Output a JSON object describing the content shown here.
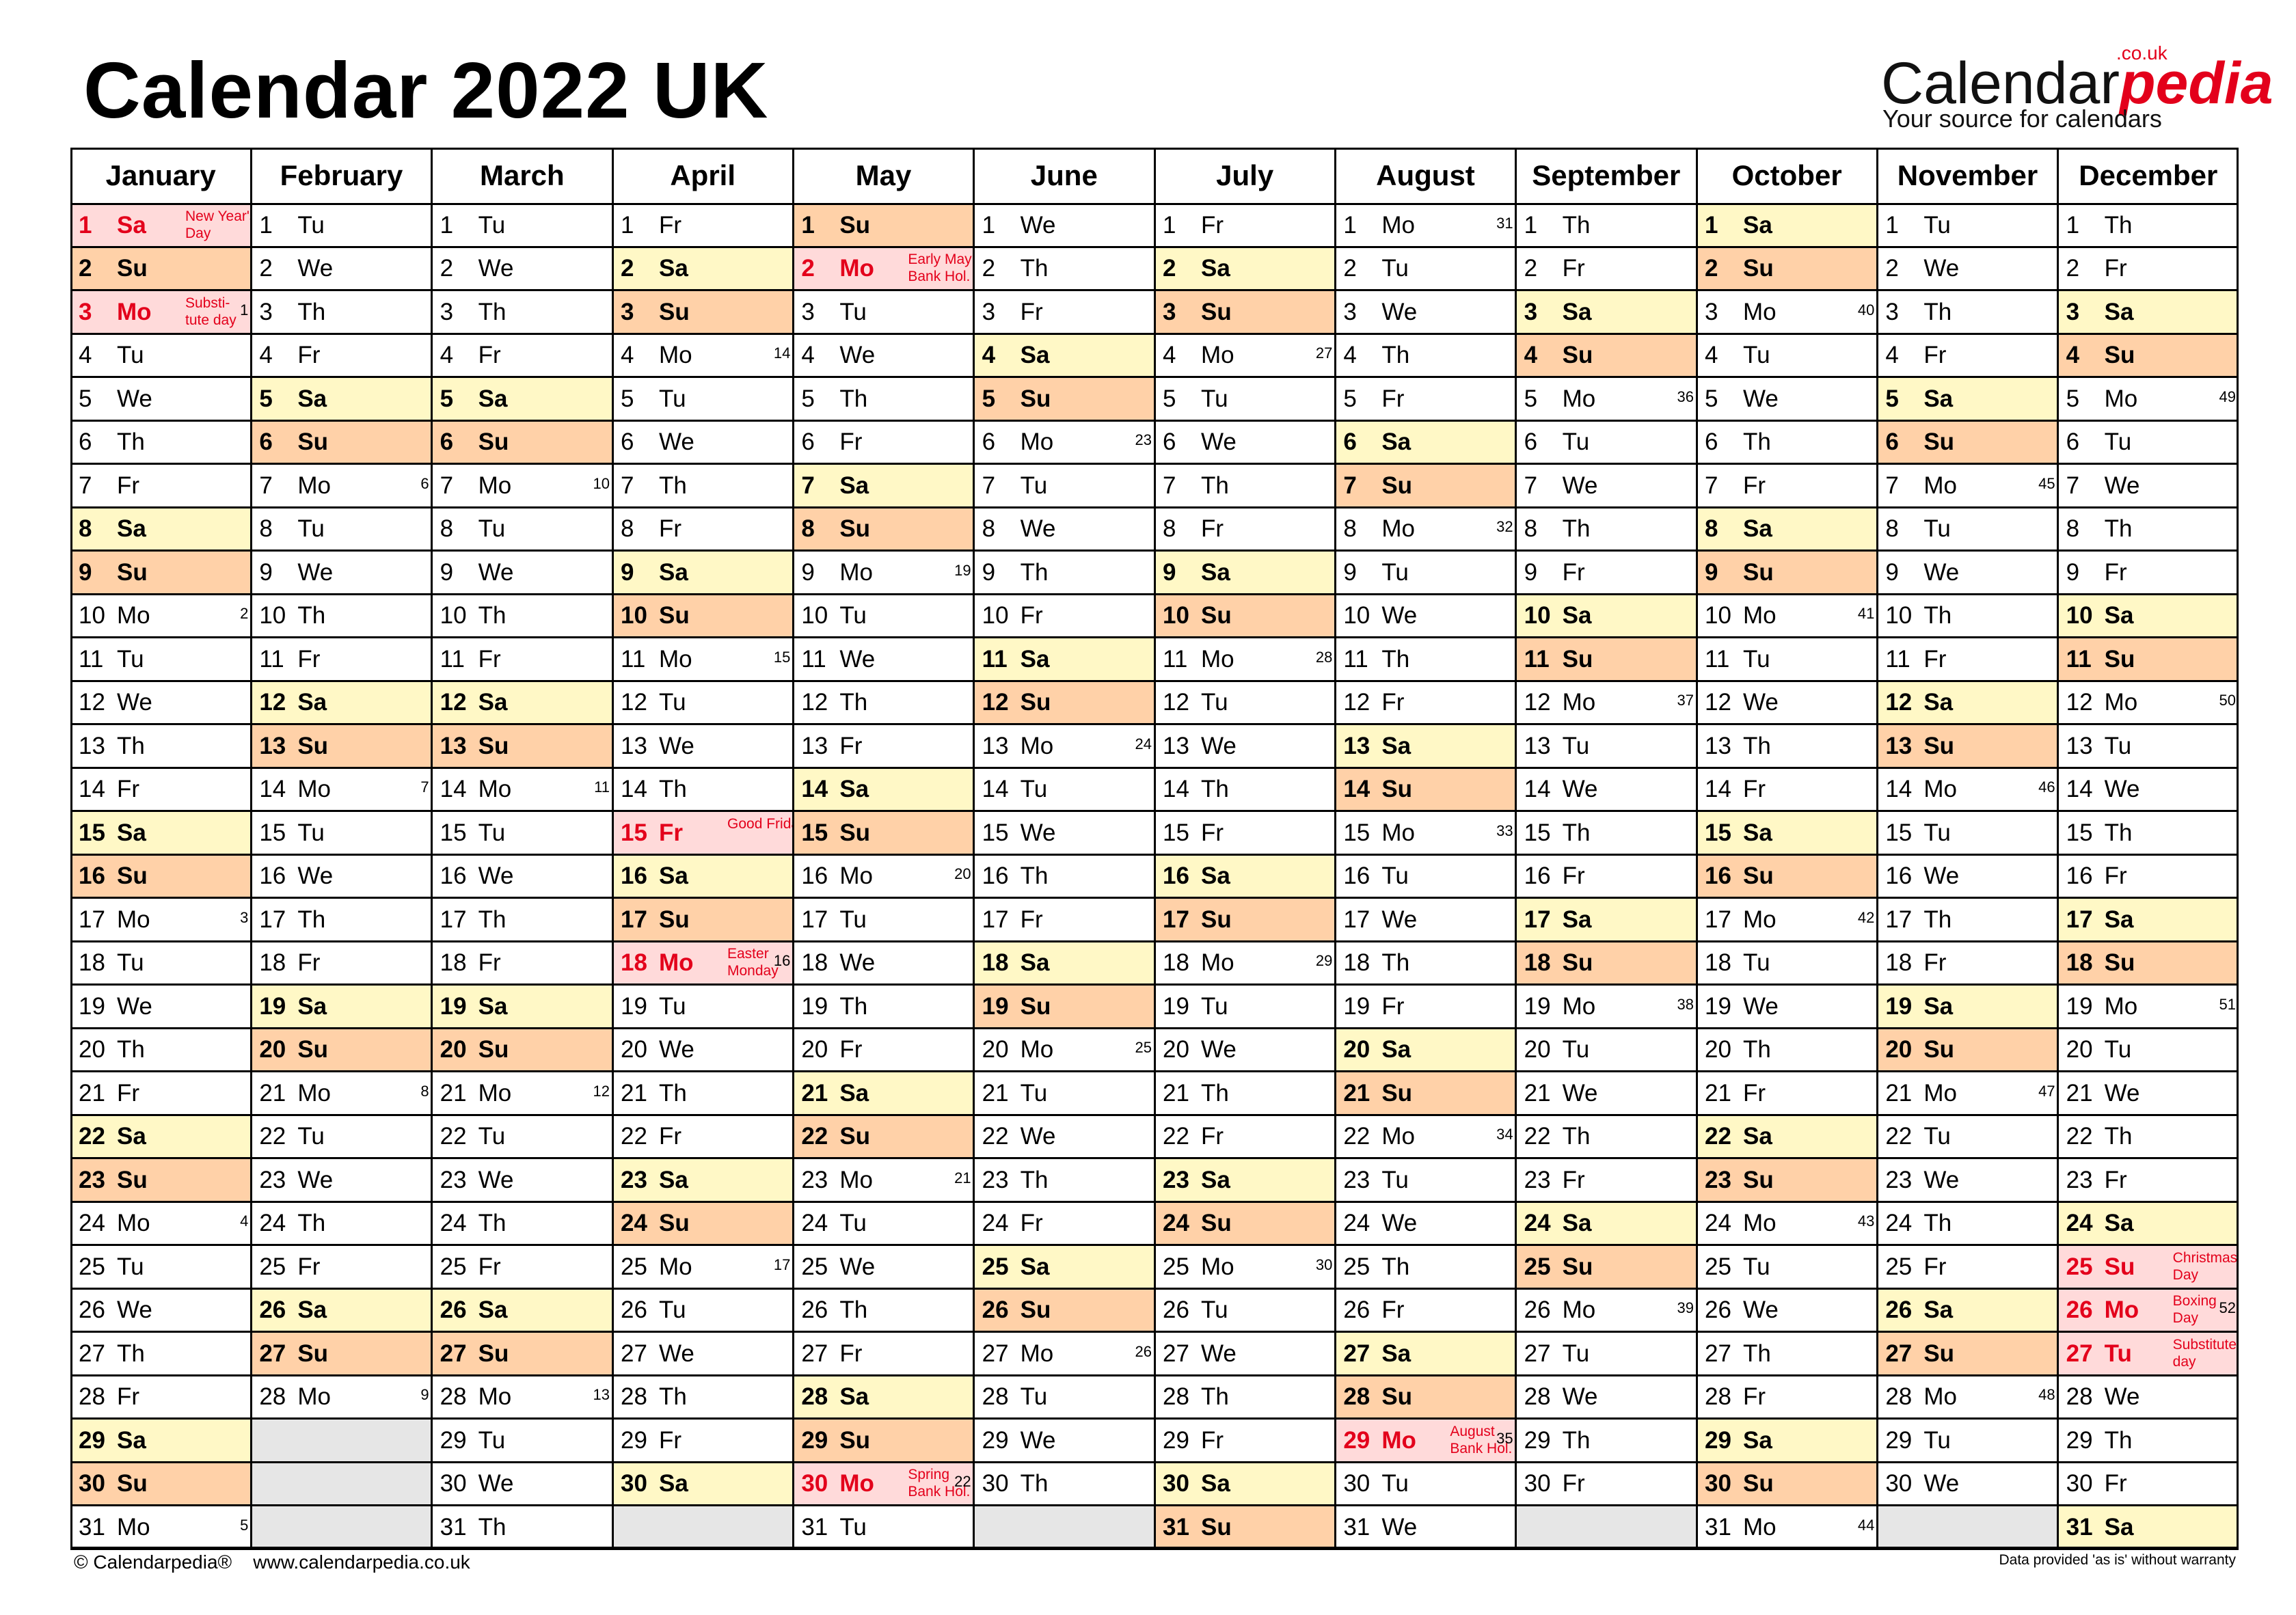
{
  "title": "Calendar 2022 UK",
  "brand": {
    "name_main": "Calendar",
    "name_accent": "pedia",
    "domain_suffix": ".co.uk",
    "tagline": "Your source for calendars"
  },
  "footer": {
    "left": "© Calendarpedia®    www.calendarpedia.co.uk",
    "right": "Data provided 'as is' without warranty"
  },
  "colors": {
    "saturday": "#fff8c6",
    "sunday": "#ffd1a8",
    "holiday": "#ffdada",
    "holiday_text": "#e3001b",
    "empty": "#e6e6e6"
  },
  "year": 2022,
  "months": [
    "January",
    "February",
    "March",
    "April",
    "May",
    "June",
    "July",
    "August",
    "September",
    "October",
    "November",
    "December"
  ],
  "day_names": [
    "Su",
    "Mo",
    "Tu",
    "We",
    "Th",
    "Fr",
    "Sa"
  ],
  "holidays": [
    {
      "month": 1,
      "day": 1,
      "label": "New Year's\nDay"
    },
    {
      "month": 1,
      "day": 3,
      "label": "Substi-\ntute day"
    },
    {
      "month": 4,
      "day": 15,
      "label": "Good Friday"
    },
    {
      "month": 4,
      "day": 18,
      "label": "Easter\nMonday"
    },
    {
      "month": 5,
      "day": 2,
      "label": "Early May\nBank Hol."
    },
    {
      "month": 5,
      "day": 30,
      "label": "Spring\nBank Hol."
    },
    {
      "month": 8,
      "day": 29,
      "label": "August\nBank Hol."
    },
    {
      "month": 12,
      "day": 25,
      "label": "Christmas\nDay"
    },
    {
      "month": 12,
      "day": 26,
      "label": "Boxing\nDay"
    },
    {
      "month": 12,
      "day": 27,
      "label": "Substitute\nday"
    }
  ],
  "week_numbers": {
    "1": {
      "3": "1",
      "10": "2",
      "17": "3",
      "24": "4",
      "31": "5"
    },
    "2": {
      "7": "6",
      "14": "7",
      "21": "8",
      "28": "9"
    },
    "3": {
      "7": "10",
      "14": "11",
      "21": "12",
      "28": "13"
    },
    "4": {
      "4": "14",
      "11": "15",
      "18": "16",
      "25": "17"
    },
    "5": {
      "9": "19",
      "16": "20",
      "23": "21",
      "30": "22"
    },
    "6": {
      "6": "23",
      "13": "24",
      "20": "25",
      "27": "26"
    },
    "7": {
      "4": "27",
      "11": "28",
      "18": "29",
      "25": "30"
    },
    "8": {
      "1": "31",
      "8": "32",
      "15": "33",
      "22": "34",
      "29": "35"
    },
    "9": {
      "5": "36",
      "12": "37",
      "19": "38",
      "26": "39"
    },
    "10": {
      "3": "40",
      "10": "41",
      "17": "42",
      "24": "43",
      "31": "44"
    },
    "11": {
      "7": "45",
      "14": "46",
      "21": "47",
      "28": "48"
    },
    "12": {
      "5": "49",
      "12": "50",
      "19": "51",
      "26": "52"
    }
  }
}
